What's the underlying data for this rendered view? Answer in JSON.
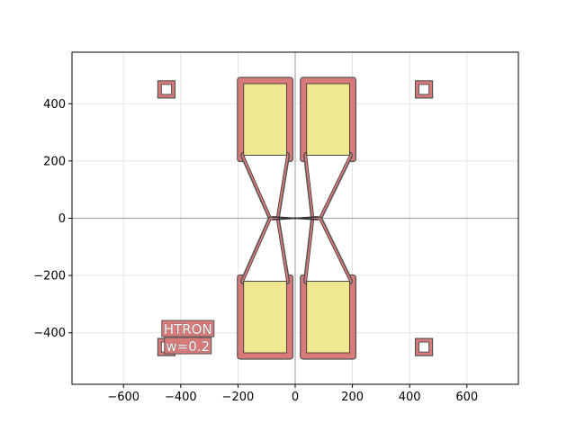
{
  "chart_data": {
    "type": "layout",
    "xlim": [
      -780,
      780
    ],
    "ylim": [
      -580,
      580
    ],
    "grid": true,
    "x_ticks": [
      -600,
      -400,
      -200,
      0,
      200,
      400,
      600
    ],
    "y_ticks": [
      -400,
      -200,
      0,
      200,
      400
    ],
    "x_tick_labels": [
      "−600",
      "−400",
      "−200",
      "0",
      "200",
      "400",
      "600"
    ],
    "y_tick_labels": [
      "−400",
      "−200",
      "0",
      "200",
      "400"
    ],
    "colors": {
      "outline_fill": "#d97a7a",
      "outline_stroke": "#555555",
      "pad_fill": "#efe892",
      "axis_line": "#a8a8a8",
      "grid": "#dddddd"
    },
    "label": {
      "line1": "HTRON",
      "line2": "w=0.2",
      "center": [
        -375,
        -420
      ]
    },
    "markers": [
      {
        "name": "top-left",
        "center": [
          -450,
          450
        ],
        "size": 60
      },
      {
        "name": "top-right",
        "center": [
          450,
          450
        ],
        "size": 60
      },
      {
        "name": "bottom-left",
        "center": [
          -450,
          -450
        ],
        "size": 60
      },
      {
        "name": "bottom-right",
        "center": [
          450,
          -450
        ],
        "size": 60
      }
    ],
    "pads": [
      {
        "name": "top-left",
        "x": [
          -180,
          -30
        ],
        "y": [
          220,
          470
        ]
      },
      {
        "name": "top-right",
        "x": [
          40,
          190
        ],
        "y": [
          220,
          470
        ]
      },
      {
        "name": "bottom-left",
        "x": [
          -180,
          -30
        ],
        "y": [
          -470,
          -220
        ]
      },
      {
        "name": "bottom-right",
        "x": [
          40,
          190
        ],
        "y": [
          -470,
          -220
        ]
      }
    ],
    "tapers": [
      {
        "name": "top-left",
        "points": [
          [
            -180,
            220
          ],
          [
            -30,
            220
          ],
          [
            -65,
            5
          ],
          [
            -85,
            5
          ]
        ]
      },
      {
        "name": "top-right",
        "points": [
          [
            40,
            220
          ],
          [
            190,
            220
          ],
          [
            85,
            5
          ],
          [
            65,
            5
          ]
        ]
      },
      {
        "name": "bottom-left",
        "points": [
          [
            -180,
            -220
          ],
          [
            -30,
            -220
          ],
          [
            -65,
            -5
          ],
          [
            -85,
            -5
          ]
        ]
      },
      {
        "name": "bottom-right",
        "points": [
          [
            40,
            -220
          ],
          [
            190,
            -220
          ],
          [
            85,
            -5
          ],
          [
            65,
            -5
          ]
        ]
      }
    ],
    "crossing": [
      {
        "name": "crossing-a",
        "points": [
          [
            -80,
            5
          ],
          [
            80,
            -5
          ]
        ]
      },
      {
        "name": "crossing-b",
        "points": [
          [
            -80,
            -5
          ],
          [
            80,
            5
          ]
        ]
      }
    ]
  }
}
